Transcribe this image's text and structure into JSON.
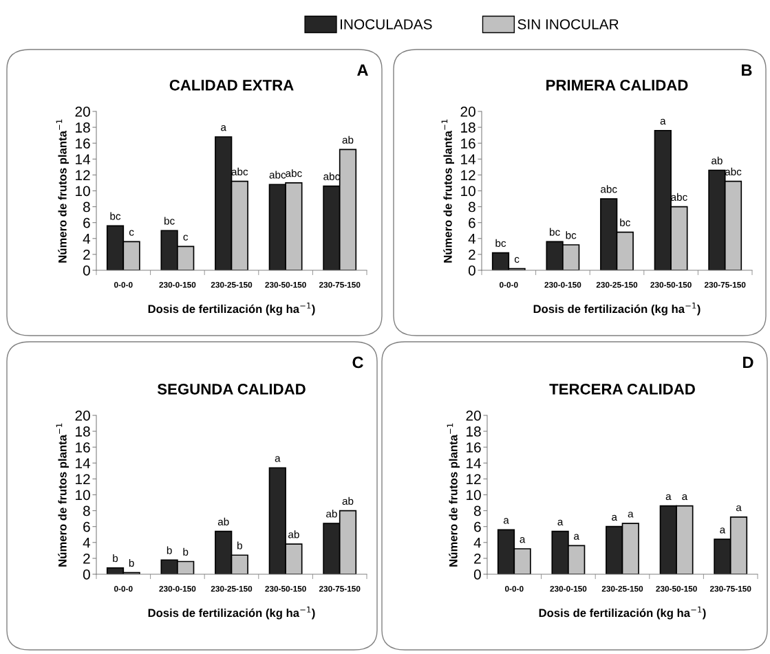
{
  "chart_data": [
    {
      "type": "bar",
      "title": "CALIDAD EXTRA",
      "xlabel": "Dosis de fertilización (kg ha$^{−1}$)",
      "ylabel": "Número de frutos planta$^{−1}$",
      "annotations": [
        "A"
      ],
      "categories": [
        "0-0-0",
        "230-0-150",
        "230-25-150",
        "230-50-150",
        "230-75-150"
      ],
      "ylim": [
        0,
        20
      ],
      "yticks": [
        0,
        2,
        4,
        6,
        8,
        10,
        12,
        14,
        16,
        18,
        20
      ],
      "grid": false,
      "legend": "top",
      "series": [
        {
          "name": "INOCULADAS",
          "color": "#262626",
          "values": [
            5.6,
            5.0,
            16.8,
            10.8,
            10.6
          ],
          "value_labels": [
            "bc",
            "bc",
            "a",
            "abc",
            "abc"
          ]
        },
        {
          "name": "SIN INOCULAR",
          "color": "#c0c0c0",
          "values": [
            3.6,
            3.0,
            11.2,
            11.0,
            15.2
          ],
          "value_labels": [
            "c",
            "c",
            "abc",
            "abc",
            "ab"
          ]
        }
      ]
    },
    {
      "type": "bar",
      "title": "PRIMERA CALIDAD",
      "xlabel": "Dosis de fertilización (kg ha$^{−1}$)",
      "ylabel": "Número de frutos planta$^{−1}$",
      "annotations": [
        "B"
      ],
      "categories": [
        "0-0-0",
        "230-0-150",
        "230-25-150",
        "230-50-150",
        "230-75-150"
      ],
      "ylim": [
        0,
        20
      ],
      "yticks": [
        0,
        2,
        4,
        6,
        8,
        10,
        12,
        14,
        16,
        18,
        20
      ],
      "grid": false,
      "series": [
        {
          "color": "#262626",
          "values": [
            2.2,
            3.6,
            9.0,
            17.6,
            12.6
          ],
          "value_labels": [
            "bc",
            "bc",
            "abc",
            "a",
            "ab"
          ]
        },
        {
          "color": "#c0c0c0",
          "values": [
            0.2,
            3.2,
            4.8,
            8.0,
            11.2
          ],
          "value_labels": [
            "c",
            "bc",
            "bc",
            "abc",
            "abc"
          ]
        }
      ]
    },
    {
      "type": "bar",
      "title": "SEGUNDA CALIDAD",
      "xlabel": "Dosis de fertilización (kg ha$^{−1}$)",
      "ylabel": "Número de frutos planta$^{−1}$",
      "annotations": [
        "C"
      ],
      "categories": [
        "0-0-0",
        "230-0-150",
        "230-25-150",
        "230-50-150",
        "230-75-150"
      ],
      "ylim": [
        0,
        20
      ],
      "yticks": [
        0,
        2,
        4,
        6,
        8,
        10,
        12,
        14,
        16,
        18,
        20
      ],
      "grid": false,
      "series": [
        {
          "color": "#262626",
          "values": [
            0.8,
            1.8,
            5.4,
            13.4,
            6.4
          ],
          "value_labels": [
            "b",
            "b",
            "ab",
            "a",
            "ab"
          ]
        },
        {
          "color": "#c0c0c0",
          "values": [
            0.2,
            1.6,
            2.4,
            3.8,
            8.0
          ],
          "value_labels": [
            "b",
            "b",
            "b",
            "ab",
            "ab"
          ]
        }
      ]
    },
    {
      "type": "bar",
      "title": "TERCERA CALIDAD",
      "xlabel": "Dosis de fertilización (kg ha$^{−1}$)",
      "ylabel": "Número de frutos planta$^{−1}$",
      "annotations": [
        "D"
      ],
      "categories": [
        "0-0-0",
        "230-0-150",
        "230-25-150",
        "230-50-150",
        "230-75-150"
      ],
      "ylim": [
        0,
        20
      ],
      "yticks": [
        0,
        2,
        4,
        6,
        8,
        10,
        12,
        14,
        16,
        18,
        20
      ],
      "grid": false,
      "series": [
        {
          "color": "#262626",
          "values": [
            5.6,
            5.4,
            6.0,
            8.6,
            4.4
          ],
          "value_labels": [
            "a",
            "a",
            "a",
            "a",
            "a"
          ]
        },
        {
          "color": "#c0c0c0",
          "values": [
            3.2,
            3.6,
            6.4,
            8.6,
            7.2
          ],
          "value_labels": [
            "a",
            "a",
            "a",
            "a",
            "a"
          ]
        }
      ]
    }
  ]
}
